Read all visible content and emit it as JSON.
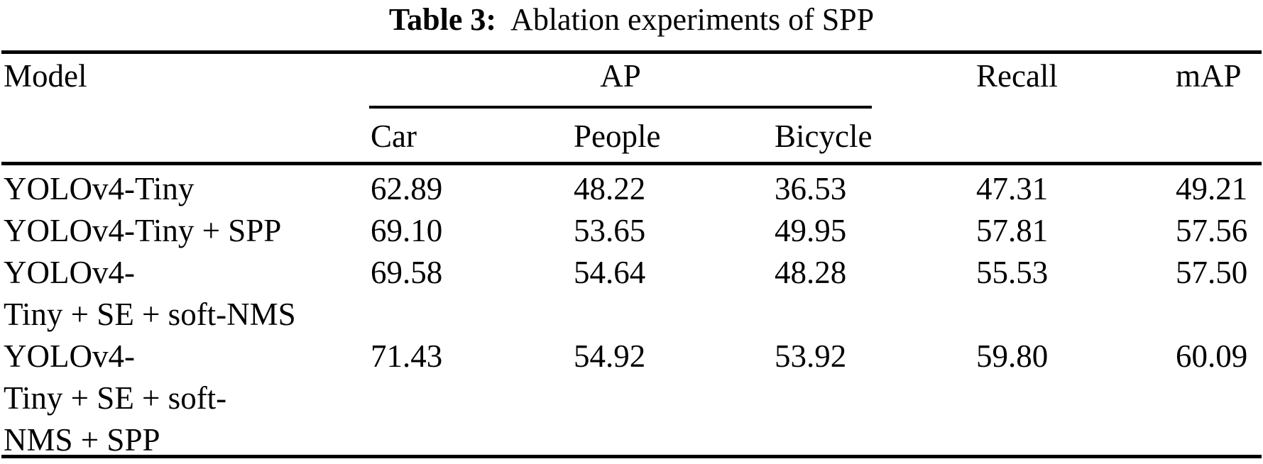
{
  "caption": {
    "label": "Table 3:",
    "text": "Ablation experiments of SPP"
  },
  "table": {
    "header": {
      "model": "Model",
      "ap_group": "AP",
      "recall": "Recall",
      "map": "mAP",
      "ap_subcolumns": {
        "car": "Car",
        "people": "People",
        "bicycle": "Bicycle"
      }
    },
    "rows": [
      {
        "model": "YOLOv4-Tiny",
        "car": "62.89",
        "people": "48.22",
        "bicycle": "36.53",
        "recall": "47.31",
        "map": "49.21"
      },
      {
        "model": "YOLOv4-Tiny + SPP",
        "car": "69.10",
        "people": "53.65",
        "bicycle": "49.95",
        "recall": "57.81",
        "map": "57.56"
      },
      {
        "model": "YOLOv4-\nTiny + SE + soft-NMS",
        "car": "69.58",
        "people": "54.64",
        "bicycle": "48.28",
        "recall": "55.53",
        "map": "57.50"
      },
      {
        "model": "YOLOv4-\nTiny + SE + soft-\nNMS + SPP",
        "car": "71.43",
        "people": "54.92",
        "bicycle": "53.92",
        "recall": "59.80",
        "map": "60.09"
      }
    ]
  },
  "colors": {
    "text": "#000000",
    "background": "#ffffff",
    "rule": "#000000"
  }
}
